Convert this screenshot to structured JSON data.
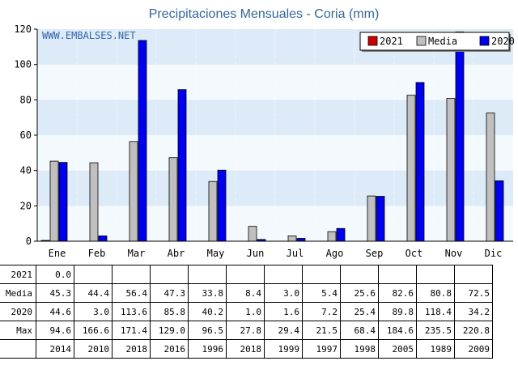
{
  "chart_data": {
    "type": "bar",
    "title": "Precipitaciones Mensuales - Coria (mm)",
    "watermark": "WWW.EMBALSES.NET",
    "categories": [
      "Ene",
      "Feb",
      "Mar",
      "Abr",
      "May",
      "Jun",
      "Jul",
      "Ago",
      "Sep",
      "Oct",
      "Nov",
      "Dic"
    ],
    "ylim": [
      0,
      120
    ],
    "yticks": [
      0,
      20,
      40,
      60,
      80,
      100,
      120
    ],
    "legend_position": "top-right",
    "series": [
      {
        "name": "2021",
        "color": "#cc0000",
        "values": [
          0.0,
          null,
          null,
          null,
          null,
          null,
          null,
          null,
          null,
          null,
          null,
          null
        ]
      },
      {
        "name": "Media",
        "color": "#c0c0c0",
        "values": [
          45.3,
          44.4,
          56.4,
          47.3,
          33.8,
          8.4,
          3.0,
          5.4,
          25.6,
          82.6,
          80.8,
          72.5
        ]
      },
      {
        "name": "2020",
        "color": "#0000ee",
        "values": [
          44.6,
          3.0,
          113.6,
          85.8,
          40.2,
          1.0,
          1.6,
          7.2,
          25.4,
          89.8,
          118.4,
          34.2
        ]
      }
    ]
  },
  "table": {
    "rows": [
      {
        "label": "2021",
        "cells": [
          "0.0",
          "",
          "",
          "",
          "",
          "",
          "",
          "",
          "",
          "",
          "",
          ""
        ]
      },
      {
        "label": "Media",
        "cells": [
          "45.3",
          "44.4",
          "56.4",
          "47.3",
          "33.8",
          "8.4",
          "3.0",
          "5.4",
          "25.6",
          "82.6",
          "80.8",
          "72.5"
        ]
      },
      {
        "label": "2020",
        "cells": [
          "44.6",
          "3.0",
          "113.6",
          "85.8",
          "40.2",
          "1.0",
          "1.6",
          "7.2",
          "25.4",
          "89.8",
          "118.4",
          "34.2"
        ]
      },
      {
        "label": "Max",
        "cells": [
          "94.6",
          "166.6",
          "171.4",
          "129.0",
          "96.5",
          "27.8",
          "29.4",
          "21.5",
          "68.4",
          "184.6",
          "235.5",
          "220.8"
        ]
      },
      {
        "label": "",
        "cells": [
          "2014",
          "2010",
          "2018",
          "2016",
          "1996",
          "2018",
          "1999",
          "1997",
          "1998",
          "2005",
          "1989",
          "2009"
        ]
      }
    ]
  }
}
